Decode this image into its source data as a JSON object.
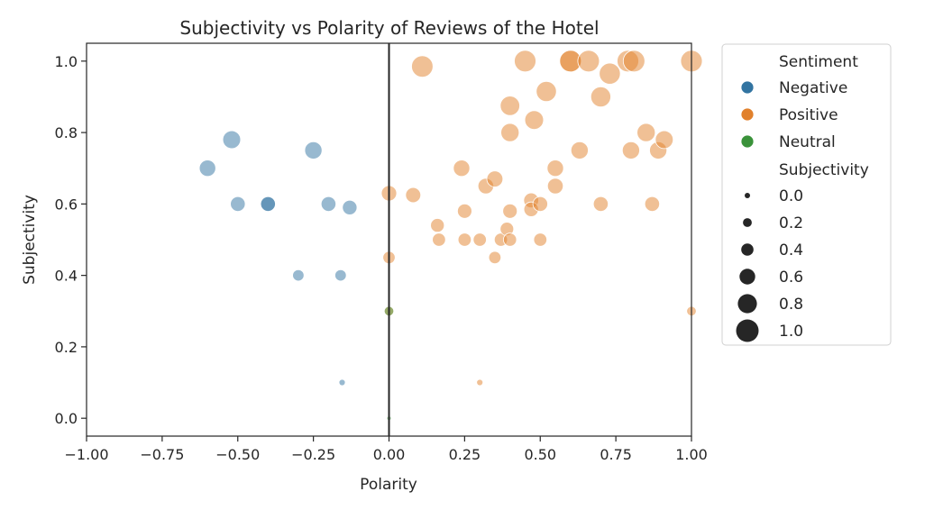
{
  "chart_data": {
    "type": "scatter",
    "title": "Subjectivity vs Polarity of Reviews of the Hotel",
    "xlabel": "Polarity",
    "ylabel": "Subjectivity",
    "xlim": [
      -1.0,
      1.0
    ],
    "ylim": [
      -0.05,
      1.05
    ],
    "xticks": [
      -1.0,
      -0.75,
      -0.5,
      -0.25,
      0.0,
      0.25,
      0.5,
      0.75,
      1.0
    ],
    "xtick_labels": [
      "−1.00",
      "−0.75",
      "−0.50",
      "−0.25",
      "0.00",
      "0.25",
      "0.50",
      "0.75",
      "1.00"
    ],
    "yticks": [
      0.0,
      0.2,
      0.4,
      0.6,
      0.8,
      1.0
    ],
    "ytick_labels": [
      "0.0",
      "0.2",
      "0.4",
      "0.6",
      "0.8",
      "1.0"
    ],
    "grid": false,
    "vertical_line_x": 0.0,
    "legend_placement": "outside-right",
    "legend": {
      "hue_title": "Sentiment",
      "size_title": "Subjectivity",
      "size_labels": [
        "0.0",
        "0.2",
        "0.4",
        "0.6",
        "0.8",
        "1.0"
      ],
      "size_values": [
        0.0,
        0.2,
        0.4,
        0.6,
        0.8,
        1.0
      ]
    },
    "series": [
      {
        "name": "Negative",
        "color": "#3274a1",
        "points": [
          [
            -0.6,
            0.7
          ],
          [
            -0.52,
            0.78
          ],
          [
            -0.5,
            0.6
          ],
          [
            -0.4,
            0.6
          ],
          [
            -0.4,
            0.6
          ],
          [
            -0.3,
            0.4
          ],
          [
            -0.25,
            0.75
          ],
          [
            -0.2,
            0.6
          ],
          [
            -0.16,
            0.4
          ],
          [
            -0.13,
            0.59
          ],
          [
            -0.155,
            0.1
          ]
        ]
      },
      {
        "name": "Positive",
        "color": "#e1812c",
        "points": [
          [
            0.0,
            0.63
          ],
          [
            0.0,
            0.45
          ],
          [
            0.0,
            0.3
          ],
          [
            0.08,
            0.625
          ],
          [
            0.11,
            0.985
          ],
          [
            0.16,
            0.54
          ],
          [
            0.165,
            0.5
          ],
          [
            0.24,
            0.7
          ],
          [
            0.25,
            0.58
          ],
          [
            0.25,
            0.5
          ],
          [
            0.3,
            0.5
          ],
          [
            0.3,
            0.1
          ],
          [
            0.32,
            0.65
          ],
          [
            0.35,
            0.67
          ],
          [
            0.35,
            0.45
          ],
          [
            0.37,
            0.5
          ],
          [
            0.39,
            0.53
          ],
          [
            0.4,
            0.5
          ],
          [
            0.4,
            0.58
          ],
          [
            0.4,
            0.8
          ],
          [
            0.4,
            0.875
          ],
          [
            0.45,
            1.0
          ],
          [
            0.47,
            0.61
          ],
          [
            0.47,
            0.585
          ],
          [
            0.48,
            0.835
          ],
          [
            0.5,
            0.5
          ],
          [
            0.5,
            0.6
          ],
          [
            0.52,
            0.915
          ],
          [
            0.55,
            0.7
          ],
          [
            0.55,
            0.65
          ],
          [
            0.6,
            1.0
          ],
          [
            0.6,
            1.0
          ],
          [
            0.63,
            0.75
          ],
          [
            0.66,
            1.0
          ],
          [
            0.7,
            0.6
          ],
          [
            0.7,
            0.9
          ],
          [
            0.73,
            0.965
          ],
          [
            0.79,
            1.0
          ],
          [
            0.8,
            0.75
          ],
          [
            0.81,
            1.0
          ],
          [
            0.85,
            0.8
          ],
          [
            0.87,
            0.6
          ],
          [
            0.89,
            0.75
          ],
          [
            0.91,
            0.78
          ],
          [
            1.0,
            1.0
          ],
          [
            1.0,
            0.3
          ]
        ]
      },
      {
        "name": "Neutral",
        "color": "#3a923a",
        "points": [
          [
            0.0,
            0.3
          ],
          [
            0.0,
            0.0
          ]
        ]
      }
    ]
  }
}
